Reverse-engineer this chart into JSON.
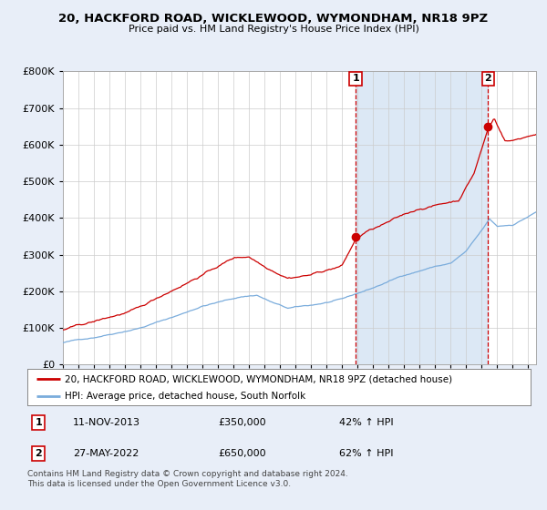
{
  "title1": "20, HACKFORD ROAD, WICKLEWOOD, WYMONDHAM, NR18 9PZ",
  "title2": "Price paid vs. HM Land Registry's House Price Index (HPI)",
  "legend_line1": "20, HACKFORD ROAD, WICKLEWOOD, WYMONDHAM, NR18 9PZ (detached house)",
  "legend_line2": "HPI: Average price, detached house, South Norfolk",
  "annotation1_date": "11-NOV-2013",
  "annotation1_price": "£350,000",
  "annotation1_hpi": "42% ↑ HPI",
  "annotation2_date": "27-MAY-2022",
  "annotation2_price": "£650,000",
  "annotation2_hpi": "62% ↑ HPI",
  "footnote": "Contains HM Land Registry data © Crown copyright and database right 2024.\nThis data is licensed under the Open Government Licence v3.0.",
  "red_color": "#cc0000",
  "blue_color": "#7aacdc",
  "dashed_color": "#cc0000",
  "shade_color": "#dce8f5",
  "background_color": "#e8eef8",
  "plot_bg": "#ffffff",
  "ylim": [
    0,
    800000
  ],
  "xlim_start": 1995.0,
  "xlim_end": 2025.5,
  "sale1_x": 2013.87,
  "sale1_y": 350000,
  "sale2_x": 2022.4,
  "sale2_y": 650000
}
